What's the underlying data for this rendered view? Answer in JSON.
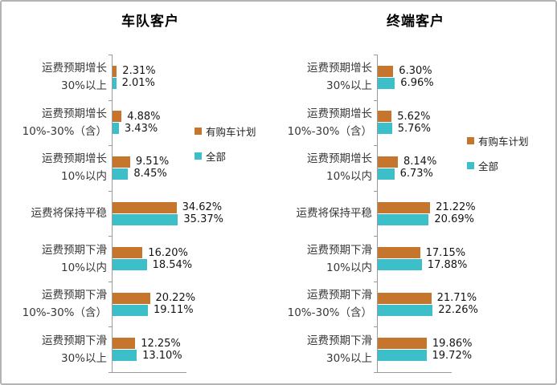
{
  "colors": {
    "series_planned": "#C6762C",
    "series_all": "#3DBFCA",
    "axis_line": "#9a9a9a",
    "page_border": "#b3b3b3"
  },
  "chart_data": [
    {
      "type": "bar",
      "orientation": "horizontal",
      "title": "车队客户",
      "categories": [
        [
          "运费预期增长",
          "30%以上"
        ],
        [
          "运费预期增长",
          "10%-30%（含）"
        ],
        [
          "运费预期增长",
          "10%以内"
        ],
        [
          "运费将保持平稳"
        ],
        [
          "运费预期下滑",
          "10%以内"
        ],
        [
          "运费预期下滑",
          "10%-30%（含）"
        ],
        [
          "运费预期下滑",
          "30%以上"
        ]
      ],
      "series": [
        {
          "name": "有购车计划",
          "color": "#C6762C",
          "values": [
            2.31,
            4.88,
            9.51,
            34.62,
            16.2,
            20.22,
            12.25
          ]
        },
        {
          "name": "全部",
          "color": "#3DBFCA",
          "values": [
            2.01,
            3.43,
            8.45,
            35.37,
            18.54,
            19.11,
            13.1
          ]
        }
      ],
      "value_suffix": "%",
      "value_decimals": 2,
      "xlim": [
        0,
        40
      ],
      "grid": false,
      "legend_position": "right-middle"
    },
    {
      "type": "bar",
      "orientation": "horizontal",
      "title": "终端客户",
      "categories": [
        [
          "运费预期增长",
          "30%以上"
        ],
        [
          "运费预期增长",
          "10%-30%（含）"
        ],
        [
          "运费预期增长",
          "10%以内"
        ],
        [
          "运费将保持平稳"
        ],
        [
          "运费预期下滑",
          "10%以内"
        ],
        [
          "运费预期下滑",
          "10%-30%（含）"
        ],
        [
          "运费预期下滑",
          "30%以上"
        ]
      ],
      "series": [
        {
          "name": "有购车计划",
          "color": "#C6762C",
          "values": [
            6.3,
            5.62,
            8.14,
            21.22,
            17.15,
            21.71,
            19.86
          ]
        },
        {
          "name": "全部",
          "color": "#3DBFCA",
          "values": [
            6.96,
            5.76,
            6.73,
            20.69,
            17.88,
            22.26,
            19.72
          ]
        }
      ],
      "value_suffix": "%",
      "value_decimals": 2,
      "xlim": [
        0,
        30
      ],
      "grid": false,
      "legend_position": "right-middle"
    }
  ]
}
